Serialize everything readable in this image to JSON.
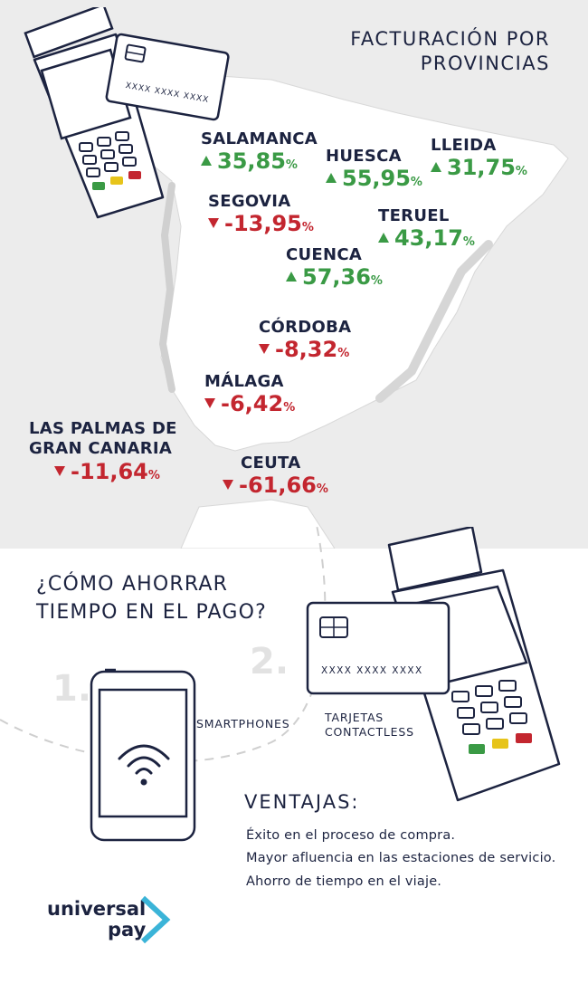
{
  "title": {
    "line1": "FACTURACIÓN POR",
    "line2": "PROVINCIAS"
  },
  "card_top": {
    "number": "XXXX XXXX XXXX"
  },
  "provinces": [
    {
      "name": "SALAMANCA",
      "value": "35,85",
      "unit": "%",
      "trend": "up"
    },
    {
      "name": "HUESCA",
      "value": "55,95",
      "unit": "%",
      "trend": "up"
    },
    {
      "name": "LLEIDA",
      "value": "31,75",
      "unit": "%",
      "trend": "up"
    },
    {
      "name": "SEGOVIA",
      "value": "-13,95",
      "unit": "%",
      "trend": "down"
    },
    {
      "name": "TERUEL",
      "value": "43,17",
      "unit": "%",
      "trend": "up"
    },
    {
      "name": "CUENCA",
      "value": "57,36",
      "unit": "%",
      "trend": "up"
    },
    {
      "name": "CÓRDOBA",
      "value": "-8,32",
      "unit": "%",
      "trend": "down"
    },
    {
      "name": "MÁLAGA",
      "value": "-6,42",
      "unit": "%",
      "trend": "down"
    },
    {
      "name_line1": "LAS PALMAS DE",
      "name_line2": "GRAN CANARIA",
      "value": "-11,64",
      "unit": "%",
      "trend": "down"
    },
    {
      "name": "CEUTA",
      "value": "-61,66",
      "unit": "%",
      "trend": "down"
    }
  ],
  "question": {
    "line1": "¿CÓMO AHORRAR",
    "line2": "TIEMPO EN EL PAGO?"
  },
  "options": [
    {
      "number": "1.",
      "label": "SMARTPHONES"
    },
    {
      "number": "2.",
      "label_line1": "TARJETAS",
      "label_line2": "CONTACTLESS"
    }
  ],
  "card_bottom": {
    "number": "XXXX XXXX XXXX"
  },
  "ventajas": {
    "heading": "VENTAJAS:",
    "items": [
      "Éxito en el proceso de compra.",
      "Mayor afluencia en las estaciones de servicio.",
      "Ahorro de tiempo en el viaje."
    ]
  },
  "logo": {
    "line1": "universal",
    "line2": "pay"
  },
  "colors": {
    "up": "#3a9a45",
    "down": "#c3262f",
    "navy": "#1c2340",
    "map": "#ffffff",
    "background": "#ececec",
    "logo_chevron": "#3bb4d8"
  }
}
